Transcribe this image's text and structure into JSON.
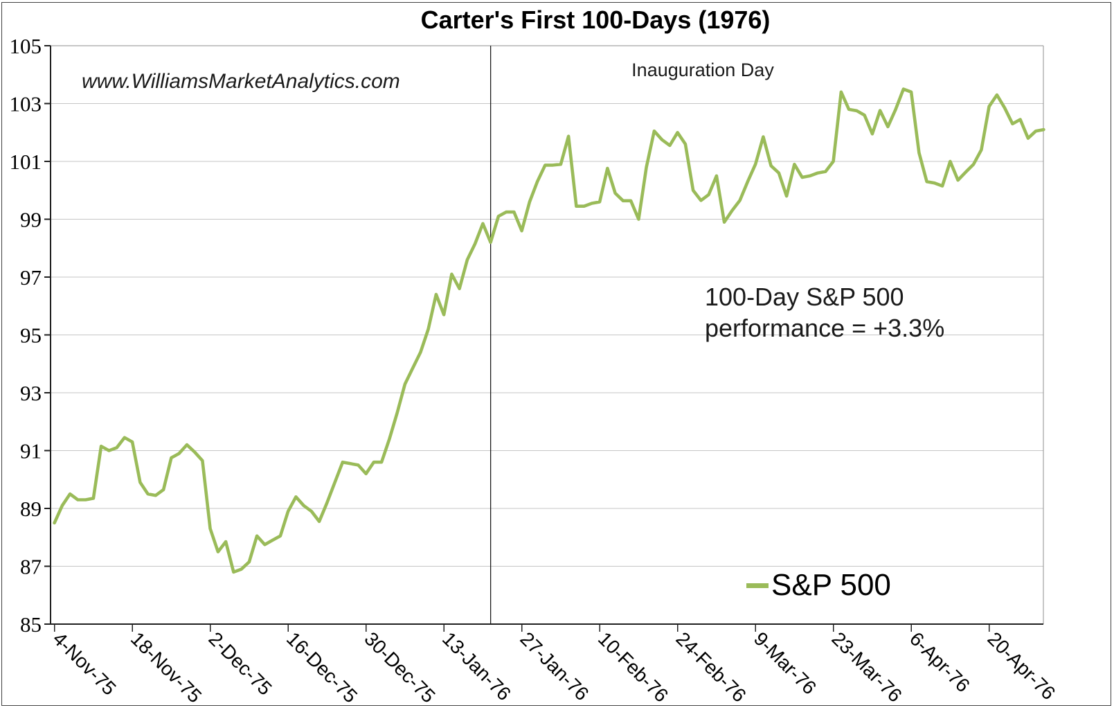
{
  "figure": {
    "watermark": "www.WilliamsMarketAnalytics.com",
    "annotation": {
      "line1": "100-Day S&P 500",
      "line2": "performance = +3.3%"
    }
  },
  "colors": {
    "background": "#ffffff",
    "outer_border": "#3f3f3f",
    "plot_border": "#8c8c8c",
    "axis": "#1f1f1f",
    "gridline": "#c6c6c6",
    "series_line": "#9abb59",
    "vline": "#1a1a1a",
    "text": "#000000"
  },
  "chart_data": {
    "type": "line",
    "title": "Carter's First 100-Days (1976)",
    "xlabel": "",
    "ylabel": "",
    "ylim": [
      85,
      105
    ],
    "y_step": 2,
    "y_tick_labels": [
      "85",
      "87",
      "89",
      "91",
      "93",
      "95",
      "97",
      "99",
      "101",
      "103",
      "105"
    ],
    "x_tick_labels": [
      "4-Nov-75",
      "18-Nov-75",
      "2-Dec-75",
      "16-Dec-75",
      "30-Dec-75",
      "13-Jan-76",
      "27-Jan-76",
      "10-Feb-76",
      "24-Feb-76",
      "9-Mar-76",
      "23-Mar-76",
      "6-Apr-76",
      "20-Apr-76"
    ],
    "x_tick_interval_points": 10,
    "grid": "horizontal",
    "legend_position": "inside-bottom-right",
    "vline": {
      "label": "Inauguration Day",
      "at_point_index": 56
    },
    "series": [
      {
        "name": "S&P 500",
        "color": "#9abb59",
        "values": [
          88.5,
          89.1,
          89.5,
          89.3,
          89.3,
          89.35,
          91.15,
          91.0,
          91.1,
          91.45,
          91.3,
          89.9,
          89.5,
          89.45,
          89.65,
          90.75,
          90.9,
          91.2,
          90.95,
          90.65,
          88.3,
          87.5,
          87.85,
          86.8,
          86.9,
          87.15,
          88.05,
          87.75,
          87.9,
          88.05,
          88.9,
          89.4,
          89.1,
          88.9,
          88.55,
          89.2,
          89.9,
          90.6,
          90.55,
          90.5,
          90.2,
          90.6,
          90.6,
          91.4,
          92.3,
          93.3,
          93.85,
          94.4,
          95.2,
          96.4,
          95.7,
          97.1,
          96.6,
          97.6,
          98.15,
          98.85,
          98.2,
          99.1,
          99.25,
          99.25,
          98.6,
          99.6,
          100.3,
          100.87,
          100.87,
          100.9,
          101.87,
          99.45,
          99.45,
          99.55,
          99.6,
          100.76,
          99.9,
          99.64,
          99.64,
          99.0,
          100.8,
          102.05,
          101.75,
          101.55,
          102.0,
          101.6,
          100.0,
          99.65,
          99.85,
          100.5,
          98.9,
          99.3,
          99.65,
          100.3,
          100.9,
          101.85,
          100.85,
          100.6,
          99.8,
          100.9,
          100.45,
          100.5,
          100.6,
          100.65,
          101.0,
          103.4,
          102.8,
          102.75,
          102.6,
          101.95,
          102.76,
          102.2,
          102.8,
          103.5,
          103.4,
          101.3,
          100.3,
          100.25,
          100.15,
          101.0,
          100.35,
          100.63,
          100.9,
          101.4,
          102.9,
          103.3,
          102.85,
          102.3,
          102.45,
          101.8,
          102.05,
          102.1
        ]
      }
    ]
  }
}
